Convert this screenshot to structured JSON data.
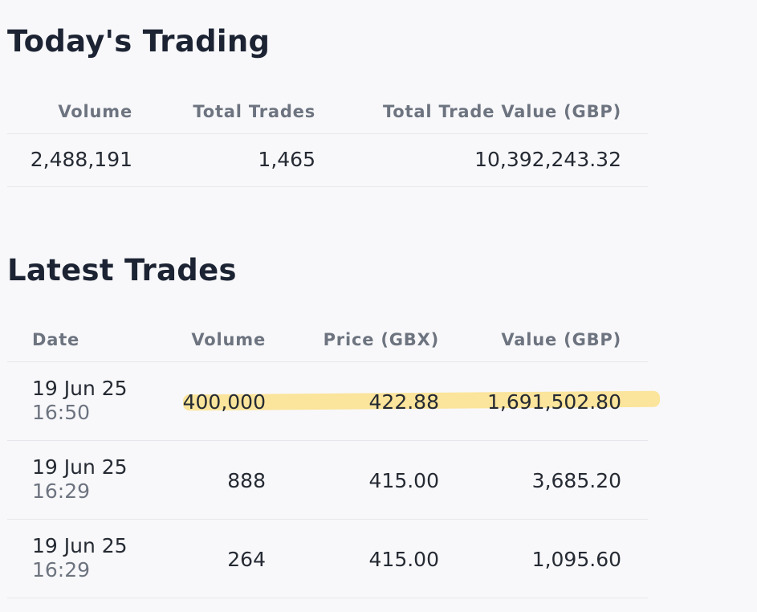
{
  "todays_trading": {
    "title": "Today's Trading",
    "headers": {
      "volume": "Volume",
      "total_trades": "Total Trades",
      "total_trade_value": "Total Trade Value (GBP)"
    },
    "values": {
      "volume": "2,488,191",
      "total_trades": "1,465",
      "total_trade_value": "10,392,243.32"
    }
  },
  "latest_trades": {
    "title": "Latest Trades",
    "headers": {
      "date": "Date",
      "volume": "Volume",
      "price": "Price (GBX)",
      "value": "Value (GBP)"
    },
    "rows": [
      {
        "date": "19 Jun 25",
        "time": "16:50",
        "volume": "400,000",
        "price": "422.88",
        "value": "1,691,502.80",
        "highlighted": true
      },
      {
        "date": "19 Jun 25",
        "time": "16:29",
        "volume": "888",
        "price": "415.00",
        "value": "3,685.20",
        "highlighted": false
      },
      {
        "date": "19 Jun 25",
        "time": "16:29",
        "volume": "264",
        "price": "415.00",
        "value": "1,095.60",
        "highlighted": false
      }
    ]
  },
  "colors": {
    "highlight": "#fbe08a",
    "heading": "#1c2333",
    "muted": "#6d7480",
    "divider": "#e6e7ec"
  }
}
